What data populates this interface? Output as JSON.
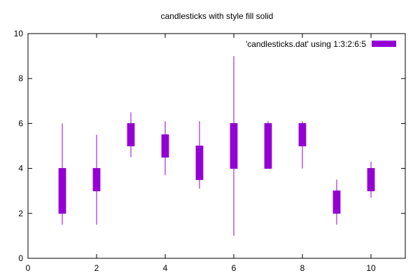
{
  "chart_data": {
    "type": "candlestick",
    "title": "candlesticks with style fill solid",
    "xlabel": "",
    "ylabel": "",
    "xlim": [
      0,
      11
    ],
    "ylim": [
      0,
      10
    ],
    "xticks": [
      0,
      2,
      4,
      6,
      8,
      10
    ],
    "yticks": [
      0,
      2,
      4,
      6,
      8,
      10
    ],
    "grid": false,
    "legend_position": "top-right",
    "series": [
      {
        "name": "'candlesticks.dat' using 1:3:2:6:5",
        "color": "#9400d3",
        "style": "fill solid",
        "points": [
          {
            "x": 1,
            "open": 2,
            "low": 1.5,
            "high": 6,
            "close": 4
          },
          {
            "x": 2,
            "open": 3,
            "low": 1.5,
            "high": 5.5,
            "close": 4
          },
          {
            "x": 3,
            "open": 5,
            "low": 4.5,
            "high": 6.5,
            "close": 6
          },
          {
            "x": 4,
            "open": 4.5,
            "low": 3.7,
            "high": 6.1,
            "close": 5.5
          },
          {
            "x": 5,
            "open": 3.5,
            "low": 3.1,
            "high": 6.1,
            "close": 5
          },
          {
            "x": 6,
            "open": 4,
            "low": 1,
            "high": 9,
            "close": 6
          },
          {
            "x": 7,
            "open": 4,
            "low": 4,
            "high": 6.1,
            "close": 6
          },
          {
            "x": 8,
            "open": 5,
            "low": 4,
            "high": 6.1,
            "close": 6
          },
          {
            "x": 9,
            "open": 2,
            "low": 1.5,
            "high": 3.5,
            "close": 3
          },
          {
            "x": 10,
            "open": 3,
            "low": 2.7,
            "high": 4.3,
            "close": 4
          }
        ]
      }
    ]
  }
}
